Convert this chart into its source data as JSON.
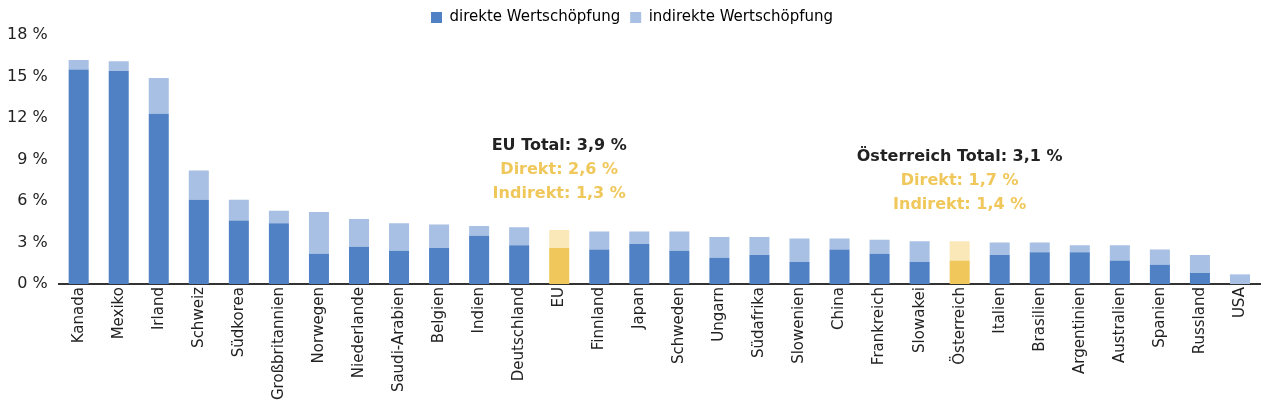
{
  "chart_data": {
    "type": "bar",
    "stacked": true,
    "legend": "top",
    "grid": false,
    "categories": [
      "Kanada",
      "Mexiko",
      "Irland",
      "Schweiz",
      "Südkorea",
      "Großbritannien",
      "Norwegen",
      "Niederlande",
      "Saudi-Arabien",
      "Belgien",
      "Indien",
      "Deutschland",
      "EU",
      "Finnland",
      "Japan",
      "Schweden",
      "Ungarn",
      "Südafrika",
      "Slowenien",
      "China",
      "Frankreich",
      "Slowakei",
      "Österreich",
      "Italien",
      "Brasilien",
      "Argentinien",
      "Australien",
      "Spanien",
      "Russland",
      "USA"
    ],
    "series": [
      {
        "name": "direkte Wertschöpfung",
        "color": "#4f81c4",
        "colors": [
          "#4f81c4",
          "#4f81c4",
          "#4f81c4",
          "#4f81c4",
          "#4f81c4",
          "#4f81c4",
          "#4f81c4",
          "#4f81c4",
          "#4f81c4",
          "#4f81c4",
          "#4f81c4",
          "#4f81c4",
          "#efc75a",
          "#4f81c4",
          "#4f81c4",
          "#4f81c4",
          "#4f81c4",
          "#4f81c4",
          "#4f81c4",
          "#4f81c4",
          "#4f81c4",
          "#4f81c4",
          "#efc75a",
          "#4f81c4",
          "#4f81c4",
          "#4f81c4",
          "#4f81c4",
          "#4f81c4",
          "#4f81c4",
          "#4f81c4"
        ],
        "values": [
          15.5,
          15.4,
          12.3,
          6.1,
          4.6,
          4.4,
          2.2,
          2.7,
          2.4,
          2.6,
          3.5,
          2.8,
          2.6,
          2.5,
          2.9,
          2.4,
          1.9,
          2.1,
          1.6,
          2.5,
          2.2,
          1.6,
          1.7,
          2.1,
          2.3,
          2.3,
          1.7,
          1.4,
          0.8,
          0
        ]
      },
      {
        "name": "indirekte Wertschöpfung",
        "color": "#a7c0e4",
        "colors": [
          "#a7c0e4",
          "#a7c0e4",
          "#a7c0e4",
          "#a7c0e4",
          "#a7c0e4",
          "#a7c0e4",
          "#a7c0e4",
          "#a7c0e4",
          "#a7c0e4",
          "#a7c0e4",
          "#a7c0e4",
          "#a7c0e4",
          "#fbe8b8",
          "#a7c0e4",
          "#a7c0e4",
          "#a7c0e4",
          "#a7c0e4",
          "#a7c0e4",
          "#a7c0e4",
          "#a7c0e4",
          "#a7c0e4",
          "#a7c0e4",
          "#fbe8b8",
          "#a7c0e4",
          "#a7c0e4",
          "#a7c0e4",
          "#a7c0e4",
          "#a7c0e4",
          "#a7c0e4",
          "#a7c0e4"
        ],
        "values": [
          0.7,
          0.7,
          2.6,
          2.1,
          1.5,
          0.9,
          3.0,
          2.0,
          2.0,
          1.7,
          0.7,
          1.3,
          1.3,
          1.3,
          0.9,
          1.4,
          1.5,
          1.3,
          1.7,
          0.8,
          1.0,
          1.5,
          1.4,
          0.9,
          0.7,
          0.5,
          1.1,
          1.1,
          1.3,
          0.7
        ]
      }
    ],
    "ylim": [
      0,
      18
    ],
    "yticks": [
      {
        "value": 0,
        "label": "0 %"
      },
      {
        "value": 3,
        "label": "3 %"
      },
      {
        "value": 6,
        "label": "6 %"
      },
      {
        "value": 9,
        "label": "9 %"
      },
      {
        "value": 12,
        "label": "12 %"
      },
      {
        "value": 15,
        "label": "15 %"
      },
      {
        "value": 18,
        "label": "18 %"
      }
    ],
    "annotations": [
      "EU Total: 3,9 %",
      "Direkt: 2,6 %",
      "Indirekt: 1,3 %",
      "Österreich Total: 3,1 %",
      "Direkt: 1,7 %",
      "Indirekt: 1,4 %"
    ]
  }
}
